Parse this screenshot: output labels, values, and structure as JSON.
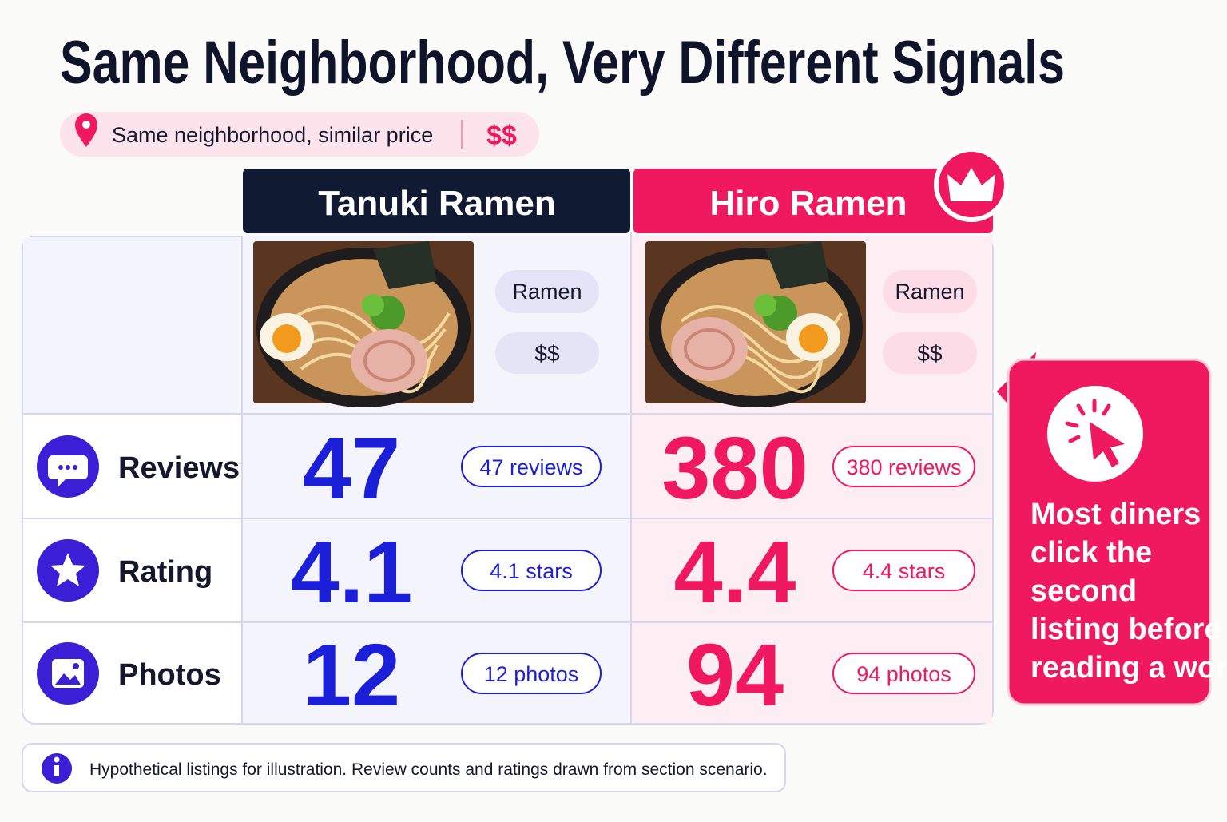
{
  "title": "Same Neighborhood, Very Different Signals",
  "context": {
    "text": "Same neighborhood, similar price",
    "price": "$$"
  },
  "listings": [
    {
      "name": "Tanuki Ramen",
      "tags": [
        "Ramen",
        "$$"
      ]
    },
    {
      "name": "Hiro Ramen",
      "tags": [
        "Ramen",
        "$$"
      ]
    }
  ],
  "table": {
    "rows": [
      {
        "label": "Reviews",
        "values": [
          47,
          380
        ],
        "value_labels": [
          "47 reviews",
          "380 reviews"
        ]
      },
      {
        "label": "Rating",
        "values": [
          4.1,
          4.4
        ],
        "value_labels": [
          "4.1 stars",
          "4.4 stars"
        ]
      },
      {
        "label": "Photos",
        "values": [
          12,
          94
        ],
        "value_labels": [
          "12 photos",
          "94 photos"
        ]
      }
    ]
  },
  "callout": {
    "lines": [
      "Most diners",
      "click the",
      "second",
      "listing before",
      "reading a word"
    ]
  },
  "footnote": "Hypothetical listings for illustration. Review counts and ratings drawn from section scenario."
}
